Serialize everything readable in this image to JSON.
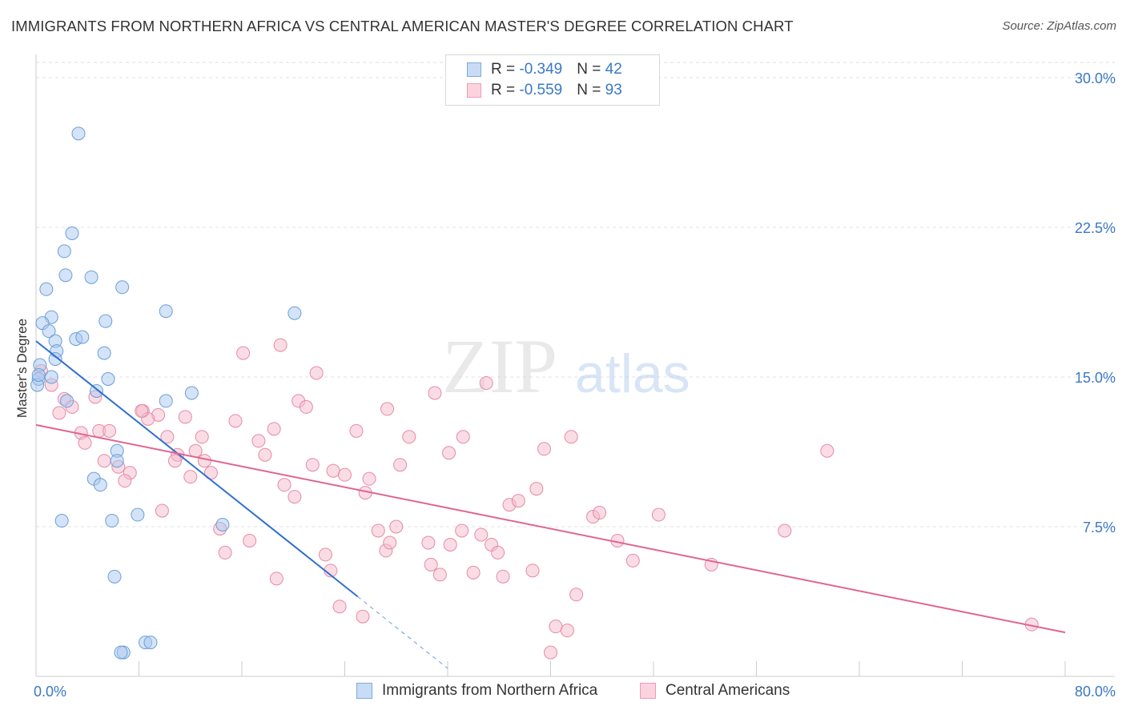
{
  "title": "IMMIGRANTS FROM NORTHERN AFRICA VS CENTRAL AMERICAN MASTER'S DEGREE CORRELATION CHART",
  "source": "Source: ZipAtlas.com",
  "watermark": {
    "zip": "ZIP",
    "atlas": "atlas"
  },
  "legend_top": [
    {
      "r_label": "R = ",
      "r_value": "-0.349",
      "n_label": "N = ",
      "n_value": "42",
      "color": "#a9c8f0"
    },
    {
      "r_label": "R = ",
      "r_value": "-0.559",
      "n_label": "N = ",
      "n_value": "93",
      "color": "#f6b9cc"
    }
  ],
  "chart_data": {
    "type": "scatter",
    "title": "IMMIGRANTS FROM NORTHERN AFRICA VS CENTRAL AMERICAN MASTER'S DEGREE CORRELATION CHART",
    "xlabel": "",
    "ylabel": "Master's Degree",
    "xlim": [
      0,
      80
    ],
    "ylim": [
      0,
      30
    ],
    "x_tick_labels": [
      "0.0%",
      "80.0%"
    ],
    "y_ticks": [
      7.5,
      15.0,
      22.5,
      30.0
    ],
    "y_tick_labels": [
      "7.5%",
      "15.0%",
      "22.5%",
      "30.0%"
    ],
    "grid": "horizontal dashed",
    "legend_position": "bottom",
    "series": [
      {
        "name": "Immigrants from Northern Africa",
        "color": "#a9c8f0",
        "stroke": "#6a9fd8",
        "line_color": "#2f6fcf",
        "trend": {
          "x0": 0,
          "y0": 16.8,
          "x1": 25,
          "y1": 4.0,
          "dashed_to_x": 32,
          "dashed_to_y": 0.4
        },
        "points": [
          [
            3.3,
            27.2
          ],
          [
            2.8,
            22.2
          ],
          [
            2.2,
            21.3
          ],
          [
            2.3,
            20.1
          ],
          [
            4.3,
            20.0
          ],
          [
            0.8,
            19.4
          ],
          [
            6.7,
            19.5
          ],
          [
            10.1,
            18.3
          ],
          [
            20.1,
            18.2
          ],
          [
            1.2,
            18.0
          ],
          [
            0.5,
            17.7
          ],
          [
            5.4,
            17.8
          ],
          [
            1.0,
            17.3
          ],
          [
            3.1,
            16.9
          ],
          [
            3.6,
            17.0
          ],
          [
            1.5,
            16.8
          ],
          [
            1.6,
            16.3
          ],
          [
            5.3,
            16.2
          ],
          [
            1.5,
            15.9
          ],
          [
            0.3,
            15.6
          ],
          [
            1.2,
            15.0
          ],
          [
            5.6,
            14.9
          ],
          [
            0.2,
            14.9
          ],
          [
            4.7,
            14.3
          ],
          [
            12.1,
            14.2
          ],
          [
            2.4,
            13.8
          ],
          [
            10.1,
            13.8
          ],
          [
            6.3,
            11.3
          ],
          [
            6.3,
            10.8
          ],
          [
            4.5,
            9.9
          ],
          [
            5.0,
            9.6
          ],
          [
            2.0,
            7.8
          ],
          [
            5.9,
            7.8
          ],
          [
            7.9,
            8.1
          ],
          [
            14.5,
            7.6
          ],
          [
            6.1,
            5.0
          ],
          [
            6.8,
            1.2
          ],
          [
            6.6,
            1.2
          ],
          [
            8.5,
            1.7
          ],
          [
            8.9,
            1.7
          ],
          [
            0.1,
            14.6
          ],
          [
            0.2,
            15.1
          ]
        ]
      },
      {
        "name": "Central Americans",
        "color": "#f6b9cc",
        "stroke": "#e58aa8",
        "line_color": "#e0648f",
        "trend": {
          "x0": 0,
          "y0": 12.6,
          "x1": 80,
          "y1": 2.2
        },
        "points": [
          [
            0.4,
            15.3
          ],
          [
            1.2,
            14.6
          ],
          [
            2.2,
            13.9
          ],
          [
            2.8,
            13.5
          ],
          [
            1.8,
            13.2
          ],
          [
            4.6,
            14.0
          ],
          [
            3.5,
            12.2
          ],
          [
            3.8,
            11.7
          ],
          [
            4.9,
            12.3
          ],
          [
            5.7,
            12.3
          ],
          [
            8.3,
            13.3
          ],
          [
            9.5,
            13.1
          ],
          [
            8.7,
            12.9
          ],
          [
            10.2,
            12.0
          ],
          [
            12.9,
            12.0
          ],
          [
            11.0,
            11.1
          ],
          [
            12.4,
            11.3
          ],
          [
            13.1,
            10.8
          ],
          [
            10.8,
            10.8
          ],
          [
            5.3,
            10.8
          ],
          [
            6.4,
            10.5
          ],
          [
            7.3,
            10.2
          ],
          [
            6.9,
            9.8
          ],
          [
            12.0,
            10.0
          ],
          [
            13.6,
            10.2
          ],
          [
            16.1,
            16.2
          ],
          [
            19.0,
            16.6
          ],
          [
            21.8,
            15.2
          ],
          [
            20.4,
            13.8
          ],
          [
            21.0,
            13.5
          ],
          [
            15.5,
            12.8
          ],
          [
            17.3,
            11.8
          ],
          [
            17.8,
            11.1
          ],
          [
            18.5,
            12.4
          ],
          [
            19.3,
            9.6
          ],
          [
            20.1,
            9.0
          ],
          [
            21.5,
            10.6
          ],
          [
            23.1,
            10.3
          ],
          [
            24.0,
            10.1
          ],
          [
            24.9,
            12.3
          ],
          [
            25.9,
            9.9
          ],
          [
            25.6,
            9.2
          ],
          [
            27.3,
            13.4
          ],
          [
            28.3,
            10.6
          ],
          [
            29.0,
            12.0
          ],
          [
            31.0,
            14.2
          ],
          [
            32.1,
            11.2
          ],
          [
            33.2,
            12.0
          ],
          [
            35.0,
            14.7
          ],
          [
            14.3,
            7.4
          ],
          [
            14.7,
            6.2
          ],
          [
            16.6,
            6.8
          ],
          [
            18.7,
            4.9
          ],
          [
            22.5,
            6.1
          ],
          [
            22.9,
            5.3
          ],
          [
            23.6,
            3.5
          ],
          [
            25.4,
            3.0
          ],
          [
            26.6,
            7.3
          ],
          [
            27.2,
            6.3
          ],
          [
            27.5,
            6.7
          ],
          [
            28.0,
            7.5
          ],
          [
            30.5,
            6.7
          ],
          [
            30.7,
            5.6
          ],
          [
            31.4,
            5.1
          ],
          [
            32.2,
            6.6
          ],
          [
            33.1,
            7.3
          ],
          [
            34.0,
            5.2
          ],
          [
            34.6,
            7.1
          ],
          [
            35.4,
            6.6
          ],
          [
            35.9,
            6.2
          ],
          [
            36.3,
            5.0
          ],
          [
            36.8,
            8.6
          ],
          [
            37.5,
            8.8
          ],
          [
            38.9,
            9.4
          ],
          [
            38.6,
            5.3
          ],
          [
            39.5,
            11.4
          ],
          [
            40.4,
            2.5
          ],
          [
            41.3,
            2.3
          ],
          [
            40.0,
            1.2
          ],
          [
            41.6,
            12.0
          ],
          [
            42.0,
            4.1
          ],
          [
            43.3,
            8.0
          ],
          [
            43.8,
            8.2
          ],
          [
            45.2,
            6.8
          ],
          [
            46.4,
            5.8
          ],
          [
            48.4,
            8.1
          ],
          [
            52.5,
            5.6
          ],
          [
            58.2,
            7.3
          ],
          [
            61.5,
            11.3
          ],
          [
            77.4,
            2.6
          ],
          [
            9.8,
            8.3
          ],
          [
            8.2,
            13.3
          ],
          [
            11.6,
            13.0
          ]
        ]
      }
    ]
  }
}
